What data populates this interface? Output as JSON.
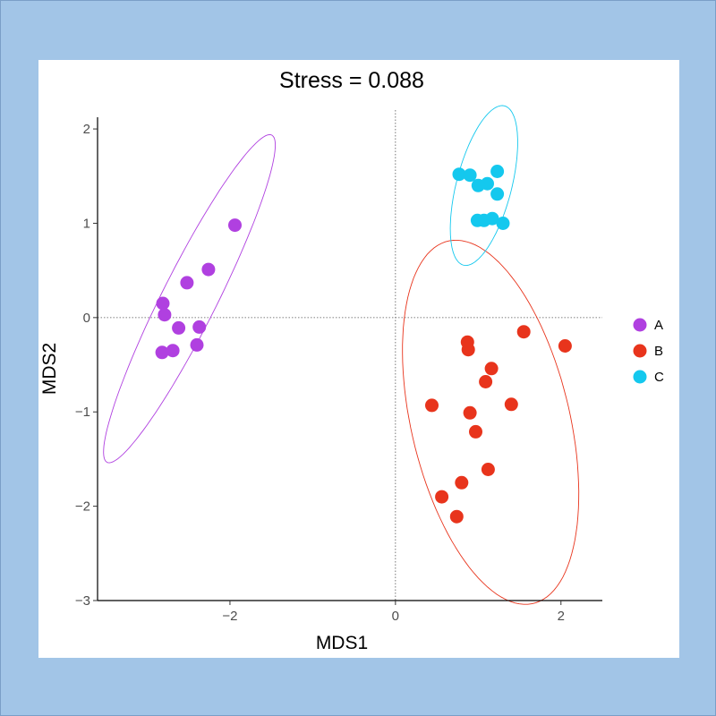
{
  "chart_data": {
    "type": "scatter",
    "title": "Stress = 0.088",
    "xlabel": "MDS1",
    "ylabel": "MDS2",
    "xlim": [
      -3.6,
      2.5
    ],
    "ylim": [
      -3.0,
      2.2
    ],
    "x_ticks": [
      -2,
      0,
      2
    ],
    "y_ticks": [
      -3,
      -2,
      -1,
      0,
      1,
      2
    ],
    "x_tick_labels": [
      "−2",
      "0",
      "2"
    ],
    "y_tick_labels": [
      "−3",
      "−2",
      "−1",
      "0",
      "1",
      "2"
    ],
    "reference_lines": {
      "x": 0,
      "y": 0,
      "style": "dotted"
    },
    "grid": false,
    "legend_position": "right",
    "series": [
      {
        "name": "A",
        "color": "#b040e0",
        "points": [
          [
            -1.94,
            0.98
          ],
          [
            -2.26,
            0.51
          ],
          [
            -2.52,
            0.37
          ],
          [
            -2.81,
            0.15
          ],
          [
            -2.79,
            0.03
          ],
          [
            -2.62,
            -0.11
          ],
          [
            -2.37,
            -0.1
          ],
          [
            -2.4,
            -0.29
          ],
          [
            -2.69,
            -0.35
          ],
          [
            -2.82,
            -0.37
          ]
        ],
        "ellipse": {
          "center": [
            -2.49,
            0.2
          ],
          "rx": 2.0,
          "ry": 0.32,
          "angle_deg": 60
        }
      },
      {
        "name": "B",
        "color": "#e8341c",
        "points": [
          [
            1.55,
            -0.15
          ],
          [
            2.05,
            -0.3
          ],
          [
            0.87,
            -0.26
          ],
          [
            0.88,
            -0.34
          ],
          [
            1.16,
            -0.54
          ],
          [
            1.09,
            -0.68
          ],
          [
            1.4,
            -0.92
          ],
          [
            0.44,
            -0.93
          ],
          [
            0.9,
            -1.01
          ],
          [
            0.97,
            -1.21
          ],
          [
            1.12,
            -1.61
          ],
          [
            0.8,
            -1.75
          ],
          [
            0.56,
            -1.9
          ],
          [
            0.74,
            -2.11
          ]
        ],
        "ellipse": {
          "center": [
            1.15,
            -1.11
          ],
          "rx": 0.95,
          "ry": 1.99,
          "angle_deg": 16
        }
      },
      {
        "name": "C",
        "color": "#14c8ee",
        "points": [
          [
            0.77,
            1.52
          ],
          [
            0.9,
            1.51
          ],
          [
            1.23,
            1.55
          ],
          [
            1.11,
            1.42
          ],
          [
            1.0,
            1.4
          ],
          [
            1.23,
            1.31
          ],
          [
            0.99,
            1.03
          ],
          [
            1.07,
            1.03
          ],
          [
            1.17,
            1.05
          ],
          [
            1.3,
            1.0
          ]
        ],
        "ellipse": {
          "center": [
            1.07,
            1.4
          ],
          "rx": 0.88,
          "ry": 0.33,
          "angle_deg": 73
        }
      }
    ]
  }
}
